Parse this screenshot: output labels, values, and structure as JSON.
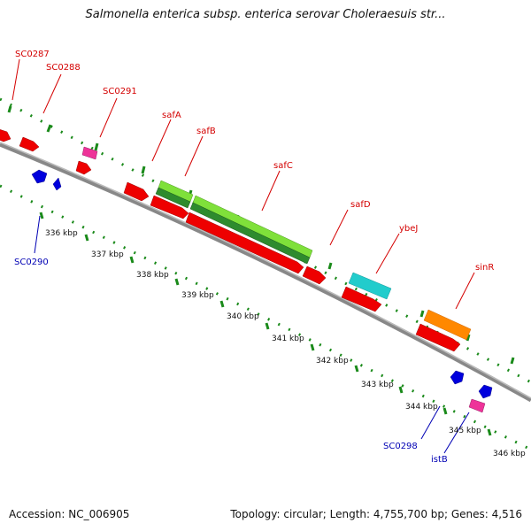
{
  "title": "Salmonella enterica subsp. enterica serovar Choleraesuis str...",
  "footer": {
    "accession": "Accession: NC_006905",
    "summary": "Topology: circular; Length: 4,755,700 bp; Genes: 4,516"
  },
  "axis_labels": [
    "336 kbp",
    "337 kbp",
    "338 kbp",
    "339 kbp",
    "340 kbp",
    "341 kbp",
    "342 kbp",
    "343 kbp",
    "344 kbp",
    "345 kbp",
    "346 kbp"
  ],
  "gene_labels": {
    "forward": [
      "SC0287",
      "SC0288",
      "SC0291",
      "safA",
      "safB",
      "safC",
      "safD",
      "ybeJ",
      "sinR"
    ],
    "reverse": [
      "SC0290",
      "SC0298",
      "istB"
    ]
  },
  "colors": {
    "cds": "#ee0000",
    "trna": "#ee3399",
    "reverse_cds": "#0000dd",
    "safA": "#7fe03a",
    "safC": "#2e8b2e",
    "ybeJ": "#22cccc",
    "sinR": "#ff8800",
    "backbone": "#808080",
    "label_forward": "#d40000",
    "label_reverse": "#0000b4"
  }
}
